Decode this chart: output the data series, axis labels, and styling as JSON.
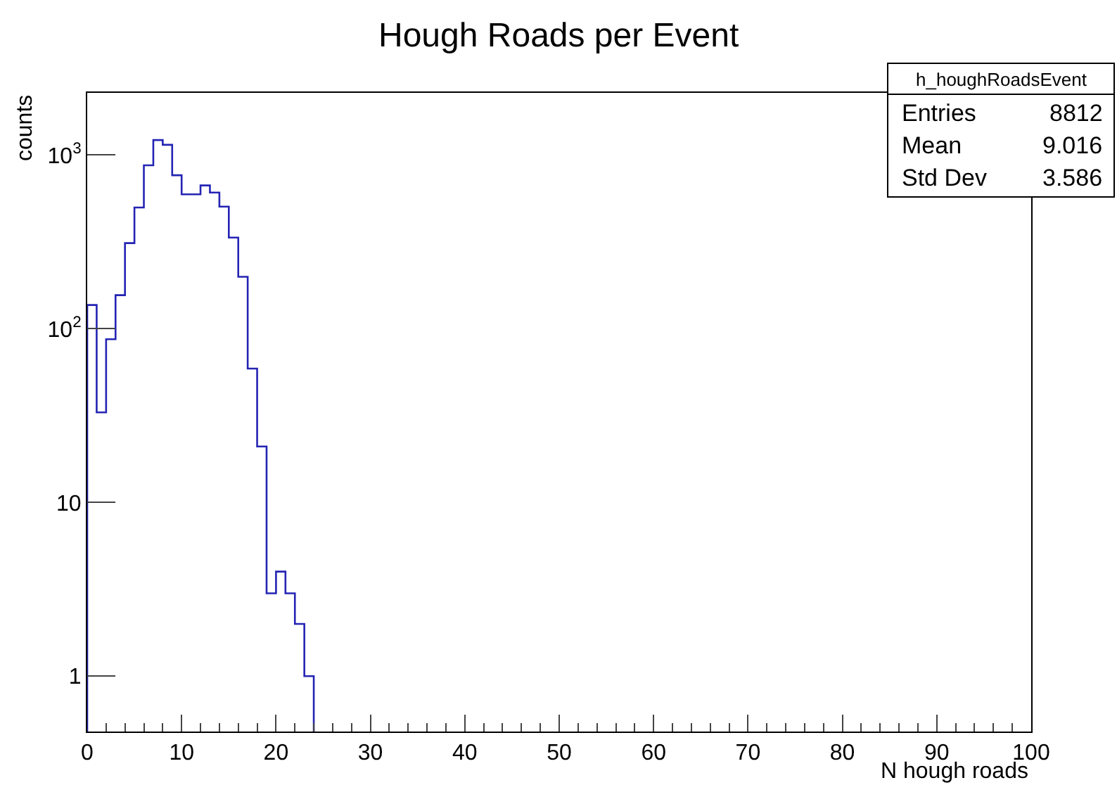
{
  "chart_data": {
    "type": "histogram",
    "title": "Hough Roads per Event",
    "xlabel": "N hough roads",
    "ylabel": "counts",
    "bins": [
      0,
      1,
      2,
      3,
      4,
      5,
      6,
      7,
      8,
      9,
      10,
      11,
      12,
      13,
      14,
      15,
      16,
      17,
      18,
      19,
      20,
      21,
      22,
      23,
      24
    ],
    "values": [
      137,
      33,
      87,
      156,
      311,
      499,
      873,
      1219,
      1145,
      765,
      594,
      594,
      668,
      608,
      505,
      335,
      199,
      59,
      21,
      3,
      4,
      3,
      2,
      1
    ],
    "color": "#2424b4",
    "log": "y",
    "xlim": [
      0,
      100
    ],
    "xticks": [
      0,
      10,
      20,
      30,
      40,
      50,
      60,
      70,
      80,
      90,
      100
    ],
    "ylim": [
      0.48,
      2280
    ],
    "yticks": [
      1,
      10,
      {
        "value": 100,
        "label": "10$^{2}$"
      },
      {
        "value": 1000,
        "label": "10$^{3}$"
      }
    ],
    "annotations": [
      "h_houghRoadsEvent",
      "Entries",
      "8812",
      "Mean",
      "9.016",
      "Std Dev",
      "3.586"
    ]
  }
}
